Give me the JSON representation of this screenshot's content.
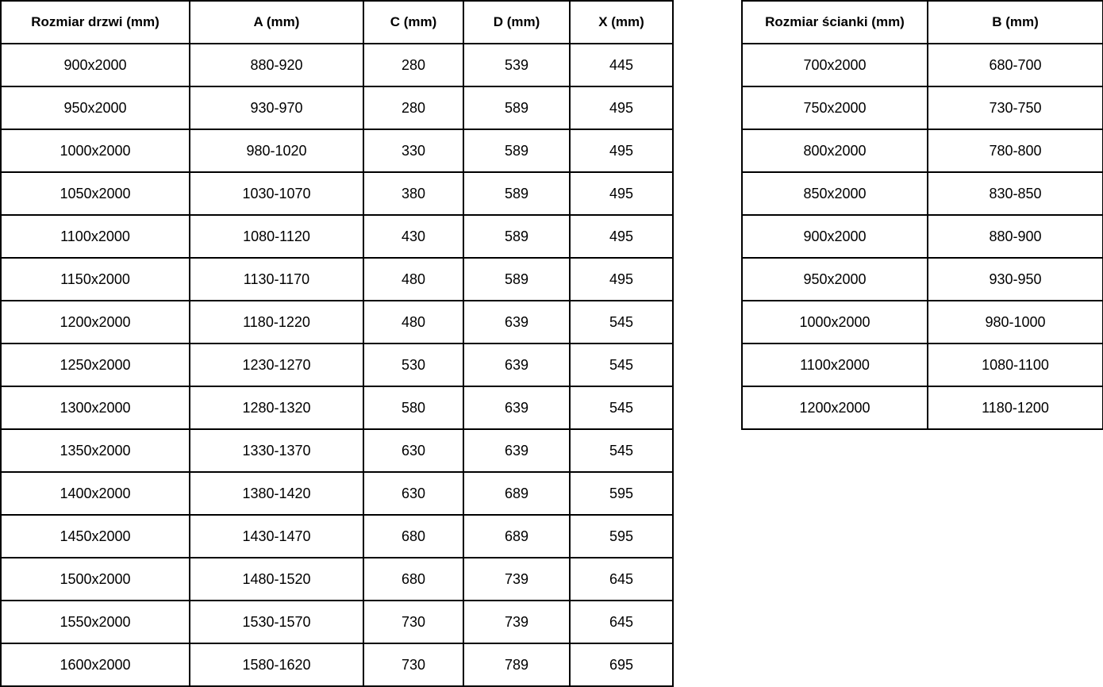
{
  "colors": {
    "border": "#000000",
    "text": "#000000",
    "background": "#ffffff"
  },
  "door_table": {
    "headers": [
      "Rozmiar drzwi (mm)",
      "A (mm)",
      "C (mm)",
      "D (mm)",
      "X (mm)"
    ],
    "rows": [
      [
        "900x2000",
        "880-920",
        "280",
        "539",
        "445"
      ],
      [
        "950x2000",
        "930-970",
        "280",
        "589",
        "495"
      ],
      [
        "1000x2000",
        "980-1020",
        "330",
        "589",
        "495"
      ],
      [
        "1050x2000",
        "1030-1070",
        "380",
        "589",
        "495"
      ],
      [
        "1100x2000",
        "1080-1120",
        "430",
        "589",
        "495"
      ],
      [
        "1150x2000",
        "1130-1170",
        "480",
        "589",
        "495"
      ],
      [
        "1200x2000",
        "1180-1220",
        "480",
        "639",
        "545"
      ],
      [
        "1250x2000",
        "1230-1270",
        "530",
        "639",
        "545"
      ],
      [
        "1300x2000",
        "1280-1320",
        "580",
        "639",
        "545"
      ],
      [
        "1350x2000",
        "1330-1370",
        "630",
        "639",
        "545"
      ],
      [
        "1400x2000",
        "1380-1420",
        "630",
        "689",
        "595"
      ],
      [
        "1450x2000",
        "1430-1470",
        "680",
        "689",
        "595"
      ],
      [
        "1500x2000",
        "1480-1520",
        "680",
        "739",
        "645"
      ],
      [
        "1550x2000",
        "1530-1570",
        "730",
        "739",
        "645"
      ],
      [
        "1600x2000",
        "1580-1620",
        "730",
        "789",
        "695"
      ]
    ]
  },
  "wall_table": {
    "headers": [
      "Rozmiar ścianki (mm)",
      "B (mm)"
    ],
    "rows": [
      [
        "700x2000",
        "680-700"
      ],
      [
        "750x2000",
        "730-750"
      ],
      [
        "800x2000",
        "780-800"
      ],
      [
        "850x2000",
        "830-850"
      ],
      [
        "900x2000",
        "880-900"
      ],
      [
        "950x2000",
        "930-950"
      ],
      [
        "1000x2000",
        "980-1000"
      ],
      [
        "1100x2000",
        "1080-1100"
      ],
      [
        "1200x2000",
        "1180-1200"
      ]
    ]
  }
}
